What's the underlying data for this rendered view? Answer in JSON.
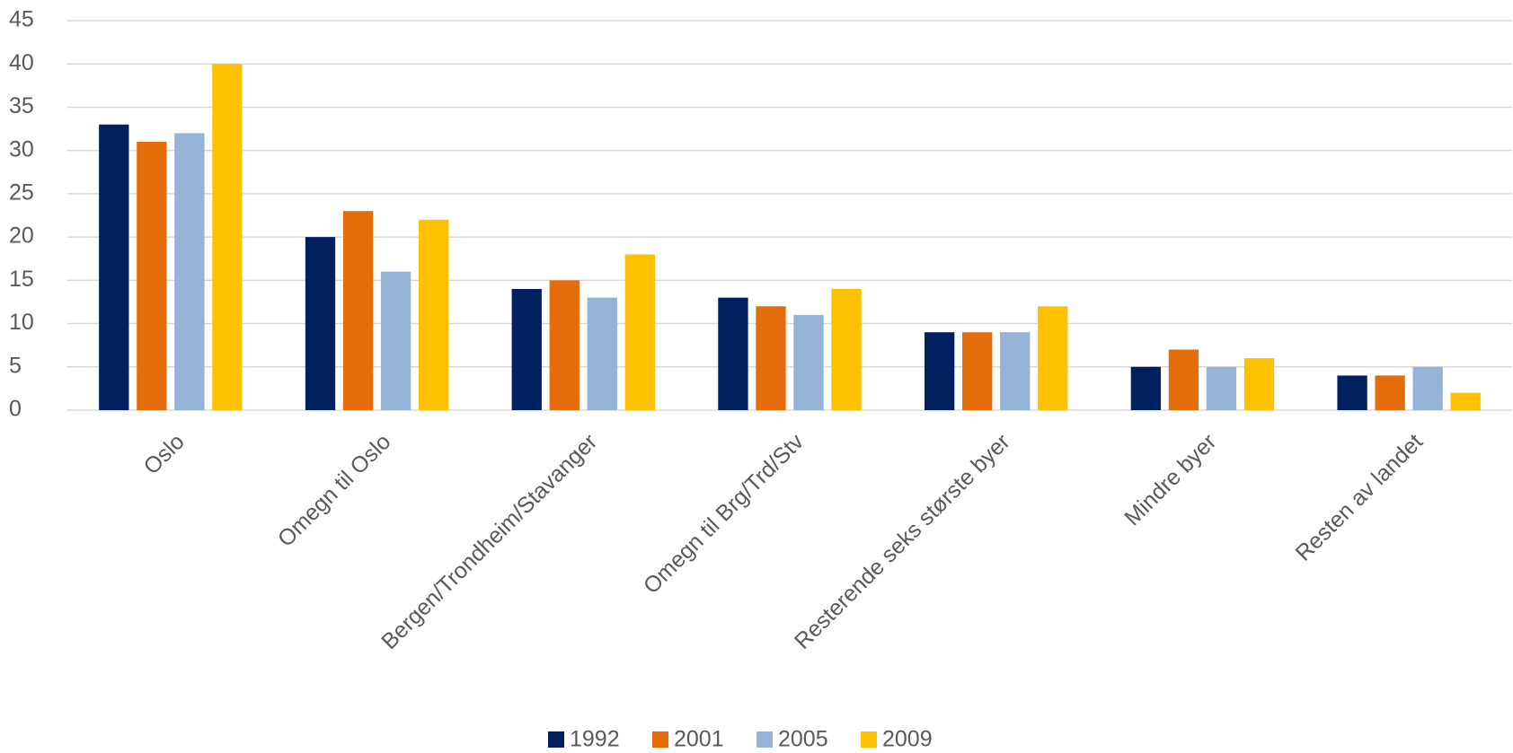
{
  "chart_data": {
    "type": "bar",
    "categories": [
      "Oslo",
      "Omegn til Oslo",
      "Bergen/Trondheim/Stavanger",
      "Omegn til Brg/Trd/Stv",
      "Resterende seks største byer",
      "Mindre byer",
      "Resten av landet"
    ],
    "series": [
      {
        "name": "1992",
        "color": "#002060",
        "values": [
          33,
          20,
          14,
          13,
          9,
          5,
          4
        ]
      },
      {
        "name": "2001",
        "color": "#e46c0a",
        "values": [
          31,
          23,
          15,
          12,
          9,
          7,
          4
        ]
      },
      {
        "name": "2005",
        "color": "#95b3d7",
        "values": [
          32,
          16,
          13,
          11,
          9,
          5,
          5
        ]
      },
      {
        "name": "2009",
        "color": "#ffc000",
        "values": [
          40,
          22,
          18,
          14,
          12,
          6,
          2
        ]
      }
    ],
    "ylim": [
      0,
      45
    ],
    "yticks": [
      0,
      5,
      10,
      15,
      20,
      25,
      30,
      35,
      40,
      45
    ],
    "grid": true,
    "legend": "bottom"
  }
}
